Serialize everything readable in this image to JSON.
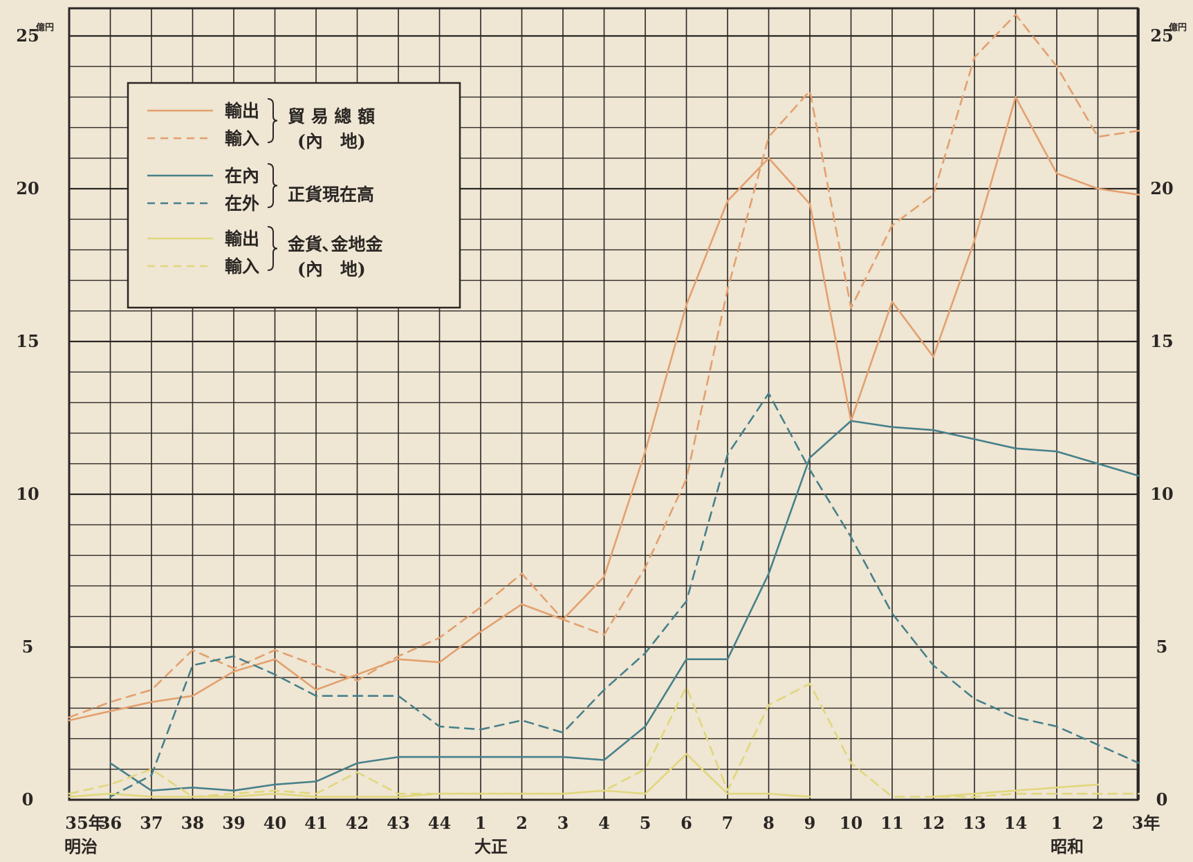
{
  "chart_data": {
    "type": "line",
    "y_unit": "億円",
    "ylim": [
      0,
      25
    ],
    "y_ticks": [
      "0",
      "5",
      "10",
      "15",
      "20",
      "25"
    ],
    "x_labels": [
      "35年",
      "36",
      "37",
      "38",
      "39",
      "40",
      "41",
      "42",
      "43",
      "44",
      "1",
      "2",
      "3",
      "4",
      "5",
      "6",
      "7",
      "8",
      "9",
      "10",
      "11",
      "12",
      "13",
      "14",
      "1",
      "2",
      "3年"
    ],
    "era_labels": [
      "明治",
      "大正",
      "昭和"
    ],
    "grid": true,
    "legend_position": "top-left",
    "legend_groups": [
      {
        "entries": [
          "輸出",
          "輸入"
        ],
        "title_lines": [
          "貿 易 總 額",
          "(內　地)"
        ]
      },
      {
        "entries": [
          "在內",
          "在外"
        ],
        "title_lines": [
          "正貨現在高"
        ]
      },
      {
        "entries": [
          "輸出",
          "輸入"
        ],
        "title_lines": [
          "金貨､金地金",
          "(內　地)"
        ]
      }
    ],
    "series": [
      {
        "name": "輸出",
        "group": "貿易總額(內地)",
        "color": "#e3a06e",
        "dash": false,
        "values": [
          2.6,
          2.9,
          3.2,
          3.4,
          4.2,
          4.6,
          3.6,
          4.1,
          4.6,
          4.5,
          5.5,
          6.4,
          5.9,
          7.3,
          11.4,
          16.2,
          19.6,
          21.0,
          19.5,
          12.4,
          16.3,
          14.5,
          18.3,
          23.0,
          20.5,
          20.0,
          19.8
        ]
      },
      {
        "name": "輸入",
        "group": "貿易總額(內地)",
        "color": "#e3a06e",
        "dash": true,
        "values": [
          2.7,
          3.2,
          3.6,
          4.9,
          4.3,
          4.9,
          4.4,
          3.9,
          4.7,
          5.3,
          6.3,
          7.4,
          5.9,
          5.4,
          7.6,
          10.5,
          16.7,
          21.7,
          23.2,
          16.1,
          18.8,
          19.8,
          24.3,
          25.7,
          24.0,
          21.7,
          21.9
        ]
      },
      {
        "name": "在內",
        "group": "正貨現在高",
        "color": "#46808a",
        "dash": false,
        "values": [
          null,
          1.2,
          0.3,
          0.4,
          0.3,
          0.5,
          0.6,
          1.2,
          1.4,
          1.4,
          1.4,
          1.4,
          1.4,
          1.3,
          2.4,
          4.6,
          4.6,
          7.4,
          11.2,
          12.4,
          12.2,
          12.1,
          11.8,
          11.5,
          11.4,
          11.0,
          10.6
        ]
      },
      {
        "name": "在外",
        "group": "正貨現在高",
        "color": "#46808a",
        "dash": true,
        "values": [
          null,
          0.1,
          0.8,
          4.4,
          4.7,
          4.1,
          3.4,
          3.4,
          3.4,
          2.4,
          2.3,
          2.6,
          2.2,
          3.6,
          4.8,
          6.5,
          11.3,
          13.3,
          10.8,
          8.6,
          6.1,
          4.4,
          3.3,
          2.7,
          2.4,
          1.8,
          1.2
        ]
      },
      {
        "name": "輸出",
        "group": "金貨､金地金(內地)",
        "color": "#e1d77c",
        "dash": false,
        "values": [
          0.1,
          0.2,
          0.1,
          0.1,
          0.1,
          0.2,
          0.1,
          0.1,
          0.1,
          0.2,
          0.2,
          0.2,
          0.2,
          0.3,
          0.2,
          1.5,
          0.2,
          0.2,
          0.1,
          null,
          null,
          0.1,
          0.2,
          0.3,
          0.4,
          0.5,
          null
        ]
      },
      {
        "name": "輸入",
        "group": "金貨､金地金(內地)",
        "color": "#e1d77c",
        "dash": true,
        "values": [
          0.2,
          0.5,
          1.0,
          0.1,
          0.2,
          0.3,
          0.2,
          0.9,
          0.2,
          0.2,
          0.2,
          0.2,
          0.2,
          0.3,
          1.0,
          3.7,
          0.3,
          3.1,
          3.8,
          1.2,
          0.1,
          0.1,
          0.1,
          0.2,
          0.2,
          0.2,
          0.2
        ]
      }
    ]
  }
}
